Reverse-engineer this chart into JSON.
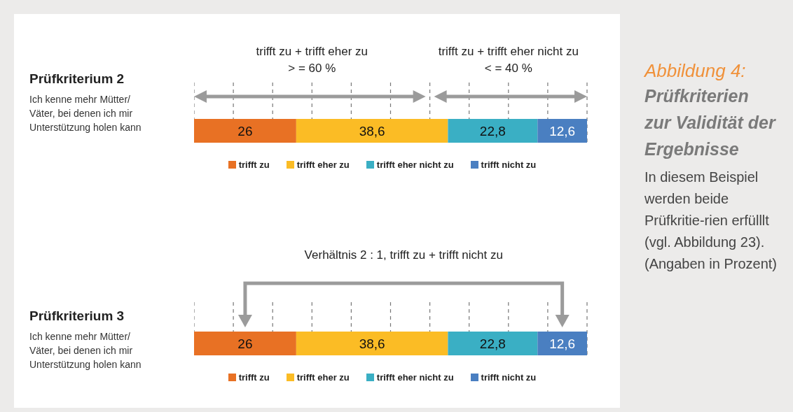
{
  "chart_data": [
    {
      "type": "bar",
      "orientation": "horizontal",
      "stacked": true,
      "title": "Prüfkriterium 2",
      "subtitle": "Ich kenne mehr Mütter/ Väter, bei denen ich mir Unterstützung holen kann",
      "categories": [
        null
      ],
      "series": [
        {
          "name": "trifft zu",
          "color": "#e87124",
          "values": [
            26
          ],
          "value_labels": [
            "26"
          ]
        },
        {
          "name": "trifft eher zu",
          "color": "#fbbc25",
          "values": [
            38.6
          ],
          "value_labels": [
            "38,6"
          ]
        },
        {
          "name": "trifft eher nicht zu",
          "color": "#3aafc4",
          "values": [
            22.8
          ],
          "value_labels": [
            "22,8"
          ]
        },
        {
          "name": "trifft nicht zu",
          "color": "#4a7fc1",
          "values": [
            12.6
          ],
          "value_labels": [
            "12,6"
          ]
        }
      ],
      "xlim": [
        0,
        100
      ],
      "xticks": [
        {
          "value": 0,
          "label": null
        },
        {
          "value": 10,
          "label": null
        },
        {
          "value": 20,
          "label": null
        },
        {
          "value": 30,
          "label": null
        },
        {
          "value": 40,
          "label": null
        },
        {
          "value": 50,
          "label": null
        },
        {
          "value": 60,
          "label": null
        },
        {
          "value": 70,
          "label": null
        },
        {
          "value": 80,
          "label": null
        },
        {
          "value": 90,
          "label": null
        },
        {
          "value": 100,
          "label": null
        }
      ],
      "grid": "x",
      "legend": "bottom",
      "annotations": [
        "trifft zu + trifft eher zu\n> = 60 %",
        "trifft zu + trifft eher nicht zu\n< = 40 %"
      ]
    },
    {
      "type": "bar",
      "orientation": "horizontal",
      "stacked": true,
      "title": "Prüfkriterium 3",
      "subtitle": "Ich kenne mehr Mütter/ Väter, bei denen ich mir Unterstützung holen kann",
      "categories": [
        null
      ],
      "series": [
        {
          "name": "trifft zu",
          "color": "#e87124",
          "values": [
            26
          ],
          "value_labels": [
            "26"
          ]
        },
        {
          "name": "trifft eher zu",
          "color": "#fbbc25",
          "values": [
            38.6
          ],
          "value_labels": [
            "38,6"
          ]
        },
        {
          "name": "trifft eher nicht zu",
          "color": "#3aafc4",
          "values": [
            22.8
          ],
          "value_labels": [
            "22,8"
          ]
        },
        {
          "name": "trifft nicht zu",
          "color": "#4a7fc1",
          "values": [
            12.6
          ],
          "value_labels": [
            "12,6"
          ]
        }
      ],
      "xlim": [
        0,
        100
      ],
      "xticks": [
        {
          "value": 0,
          "label": null
        },
        {
          "value": 10,
          "label": null
        },
        {
          "value": 20,
          "label": null
        },
        {
          "value": 30,
          "label": null
        },
        {
          "value": 40,
          "label": null
        },
        {
          "value": 50,
          "label": null
        },
        {
          "value": 60,
          "label": null
        },
        {
          "value": 70,
          "label": null
        },
        {
          "value": 80,
          "label": null
        },
        {
          "value": 90,
          "label": null
        },
        {
          "value": 100,
          "label": null
        }
      ],
      "grid": "x",
      "legend": "bottom",
      "annotations": [
        "Verhältnis 2 : 1, trifft zu + trifft nicht zu"
      ]
    },
    {
      "type": "other",
      "title": "Abbildung 4:",
      "subtitle": "Prüfkriterien zur Validität der Ergebnisse",
      "annotations": [
        "In diesem Beispiel werden beide Prüfkritie-rien erfülllt (vgl. Abbildung 23).",
        "(Angaben in Prozent)"
      ]
    }
  ]
}
